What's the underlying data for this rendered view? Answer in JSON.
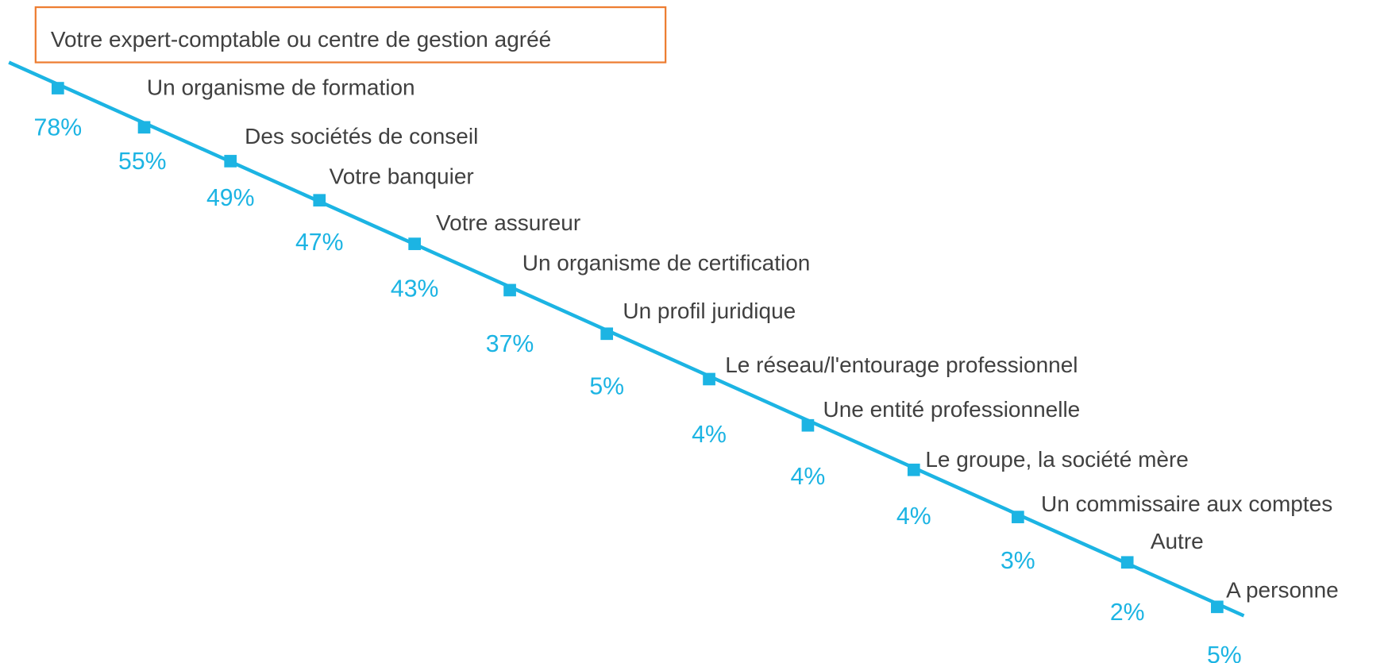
{
  "items": [
    {
      "label": "Votre expert-comptable ou centre de gestion agréé",
      "percent": "78%"
    },
    {
      "label": "Un organisme de formation",
      "percent": "55%"
    },
    {
      "label": "Des sociétés de conseil",
      "percent": "49%"
    },
    {
      "label": "Votre banquier",
      "percent": "47%"
    },
    {
      "label": "Votre assureur",
      "percent": "43%"
    },
    {
      "label": "Un organisme de certification",
      "percent": "37%"
    },
    {
      "label": "Un profil juridique",
      "percent": "5%"
    },
    {
      "label": "Le réseau/l'entourage professionnel",
      "percent": "4%"
    },
    {
      "label": "Une entité professionnelle",
      "percent": "4%"
    },
    {
      "label": "Le groupe, la société mère",
      "percent": "4%"
    },
    {
      "label": "Un commissaire aux comptes",
      "percent": "3%"
    },
    {
      "label": "Autre",
      "percent": "2%"
    },
    {
      "label": "A personne",
      "percent": "5%"
    }
  ]
}
